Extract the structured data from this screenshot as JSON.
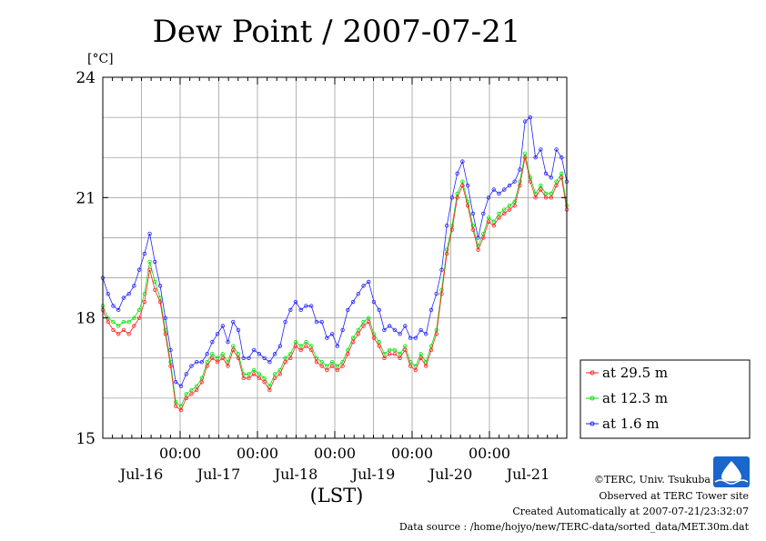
{
  "chart_data": {
    "type": "line",
    "title": "Dew Point / 2007-07-21",
    "yunit": "[°C]",
    "xlabel": "(LST)",
    "ylim": [
      15,
      24
    ],
    "yticks": [
      "15",
      "18",
      "21",
      "24"
    ],
    "xlim_days": [
      0,
      6
    ],
    "time_ticks": [
      "00:00",
      "00:00",
      "00:00",
      "00:00",
      "00:00"
    ],
    "date_labels": [
      "Jul-16",
      "Jul-17",
      "Jul-18",
      "Jul-19",
      "Jul-20",
      "Jul-21"
    ],
    "grid": true,
    "legend_position": "right",
    "series": [
      {
        "name": "at 29.5 m",
        "color": "#ff2020",
        "values": [
          18.2,
          17.9,
          17.7,
          17.6,
          17.7,
          17.6,
          17.8,
          18.0,
          18.4,
          19.2,
          18.7,
          18.4,
          17.6,
          16.8,
          15.8,
          15.7,
          16.0,
          16.1,
          16.2,
          16.4,
          16.8,
          17.0,
          16.9,
          17.0,
          16.8,
          17.2,
          17.0,
          16.5,
          16.5,
          16.6,
          16.5,
          16.4,
          16.2,
          16.5,
          16.6,
          16.9,
          17.0,
          17.3,
          17.2,
          17.3,
          17.2,
          16.9,
          16.8,
          16.7,
          16.8,
          16.7,
          16.8,
          17.1,
          17.4,
          17.6,
          17.8,
          17.9,
          17.5,
          17.3,
          17.0,
          17.1,
          17.1,
          17.0,
          17.2,
          16.8,
          16.7,
          17.0,
          16.8,
          17.2,
          17.6,
          18.6,
          19.6,
          20.2,
          21.0,
          21.3,
          20.8,
          20.2,
          19.7,
          20.0,
          20.4,
          20.3,
          20.5,
          20.6,
          20.7,
          20.8,
          21.3,
          22.0,
          21.4,
          21.0,
          21.2,
          21.0,
          21.0,
          21.3,
          21.5,
          20.7
        ]
      },
      {
        "name": "at 12.3 m",
        "color": "#00e000",
        "values": [
          18.3,
          18.0,
          17.9,
          17.8,
          17.9,
          17.9,
          18.0,
          18.2,
          18.6,
          19.4,
          18.9,
          18.5,
          17.7,
          16.9,
          15.9,
          15.8,
          16.1,
          16.2,
          16.3,
          16.5,
          16.9,
          17.1,
          17.0,
          17.1,
          16.9,
          17.3,
          17.1,
          16.6,
          16.6,
          16.7,
          16.6,
          16.5,
          16.3,
          16.6,
          16.7,
          17.0,
          17.1,
          17.4,
          17.3,
          17.4,
          17.3,
          17.0,
          16.9,
          16.8,
          16.9,
          16.8,
          16.9,
          17.2,
          17.5,
          17.7,
          17.9,
          18.0,
          17.6,
          17.4,
          17.1,
          17.2,
          17.2,
          17.1,
          17.3,
          16.9,
          16.8,
          17.1,
          16.9,
          17.3,
          17.7,
          18.7,
          19.7,
          20.3,
          21.1,
          21.4,
          20.9,
          20.3,
          19.8,
          20.1,
          20.5,
          20.4,
          20.6,
          20.7,
          20.8,
          20.9,
          21.4,
          22.1,
          21.5,
          21.1,
          21.3,
          21.1,
          21.1,
          21.4,
          21.6,
          20.8
        ]
      },
      {
        "name": "at 1.6 m",
        "color": "#2020ff",
        "values": [
          19.0,
          18.6,
          18.3,
          18.2,
          18.5,
          18.6,
          18.8,
          19.2,
          19.6,
          20.1,
          19.4,
          18.8,
          18.0,
          17.2,
          16.4,
          16.3,
          16.6,
          16.8,
          16.9,
          16.9,
          17.1,
          17.4,
          17.6,
          17.8,
          17.4,
          17.9,
          17.7,
          17.0,
          17.0,
          17.2,
          17.1,
          17.0,
          16.9,
          17.1,
          17.3,
          17.9,
          18.2,
          18.4,
          18.2,
          18.3,
          18.3,
          17.9,
          17.9,
          17.5,
          17.6,
          17.3,
          17.7,
          18.2,
          18.4,
          18.6,
          18.8,
          18.9,
          18.4,
          18.2,
          17.7,
          17.8,
          17.7,
          17.6,
          17.8,
          17.5,
          17.5,
          17.7,
          17.6,
          18.2,
          18.6,
          19.2,
          20.3,
          21.0,
          21.6,
          21.9,
          21.3,
          20.6,
          20.0,
          20.6,
          21.0,
          21.2,
          21.1,
          21.2,
          21.3,
          21.4,
          21.7,
          22.9,
          23.0,
          22.0,
          22.2,
          21.6,
          21.5,
          22.2,
          22.0,
          21.4
        ]
      }
    ]
  },
  "footer": {
    "credit": "©TERC, Univ. Tsukuba",
    "site": "Observed at TERC Tower site",
    "created": "Created Automatically at 2007-07-21/23:32:07",
    "source": "Data source : /home/hojyo/new/TERC-data/sorted_data/MET.30m.dat"
  }
}
